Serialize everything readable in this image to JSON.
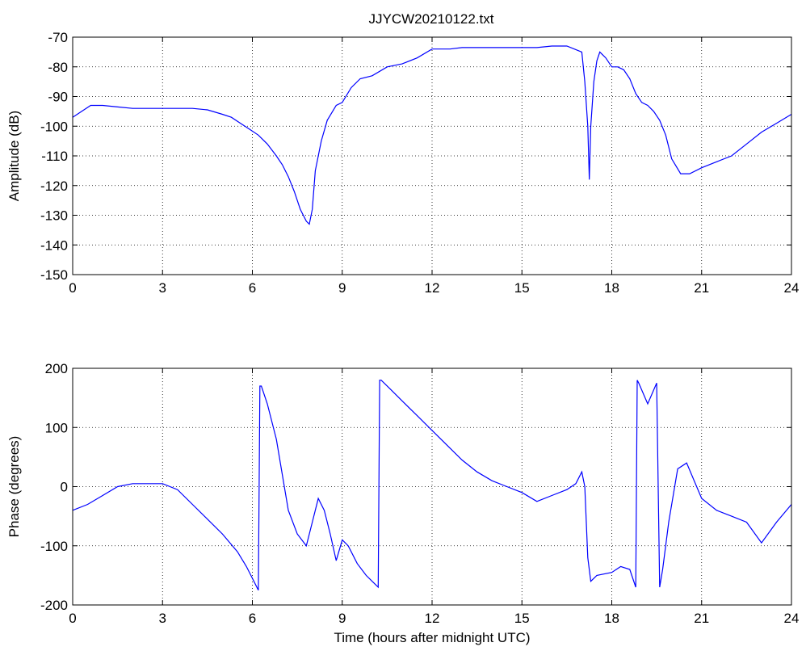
{
  "figure_title": "JJYCW20210122.txt",
  "chart_data": [
    {
      "type": "line",
      "title": "JJYCW20210122.txt",
      "xlabel": "",
      "ylabel": "Amplitude (dB)",
      "xlim": [
        0,
        24
      ],
      "ylim": [
        -150,
        -70
      ],
      "xticks": [
        0,
        3,
        6,
        9,
        12,
        15,
        18,
        21,
        24
      ],
      "yticks": [
        -150,
        -140,
        -130,
        -120,
        -110,
        -100,
        -90,
        -80,
        -70
      ],
      "grid": true,
      "line_color": "#0000ff",
      "series": [
        {
          "x": [
            0,
            0.3,
            0.6,
            1,
            1.5,
            2,
            2.5,
            3,
            3.5,
            4,
            4.5,
            5,
            5.3,
            5.6,
            5.9,
            6.2,
            6.5,
            6.8,
            7.0,
            7.2,
            7.4,
            7.6,
            7.8,
            7.9,
            8.0,
            8.1,
            8.3,
            8.5,
            8.8,
            9.0,
            9.3,
            9.6,
            10,
            10.5,
            11,
            11.5,
            12,
            12.3,
            12.6,
            13,
            13.5,
            14,
            14.5,
            15,
            15.5,
            16,
            16.5,
            17.0,
            17.1,
            17.2,
            17.25,
            17.3,
            17.4,
            17.5,
            17.6,
            17.8,
            18.0,
            18.2,
            18.4,
            18.6,
            18.8,
            19.0,
            19.2,
            19.4,
            19.6,
            19.8,
            20.0,
            20.3,
            20.6,
            21,
            21.5,
            22,
            22.5,
            23,
            23.5,
            24
          ],
          "y": [
            -97,
            -95,
            -93,
            -93,
            -93.5,
            -94,
            -94,
            -94,
            -94,
            -94,
            -94.5,
            -96,
            -97,
            -99,
            -101,
            -103,
            -106,
            -110,
            -113,
            -117,
            -122,
            -128,
            -132,
            -133,
            -128,
            -115,
            -105,
            -98,
            -93,
            -92,
            -87,
            -84,
            -83,
            -80,
            -79,
            -77,
            -74,
            -74,
            -74,
            -73.5,
            -73.5,
            -73.5,
            -73.5,
            -73.5,
            -73.5,
            -73,
            -73,
            -75,
            -85,
            -100,
            -118,
            -100,
            -85,
            -78,
            -75,
            -77,
            -80,
            -80,
            -81,
            -84,
            -89,
            -92,
            -93,
            -95,
            -98,
            -103,
            -111,
            -116,
            -116,
            -114,
            -112,
            -110,
            -106,
            -102,
            -99,
            -96
          ]
        }
      ]
    },
    {
      "type": "line",
      "title": "",
      "xlabel": "Time (hours after midnight UTC)",
      "ylabel": "Phase (degrees)",
      "xlim": [
        0,
        24
      ],
      "ylim": [
        -200,
        200
      ],
      "xticks": [
        0,
        3,
        6,
        9,
        12,
        15,
        18,
        21,
        24
      ],
      "yticks": [
        -200,
        -100,
        0,
        100,
        200
      ],
      "grid": true,
      "line_color": "#0000ff",
      "series": [
        {
          "x": [
            0,
            0.5,
            1,
            1.5,
            2,
            2.5,
            3,
            3.5,
            4,
            4.5,
            5,
            5.5,
            5.8,
            6.0,
            6.2,
            6.25,
            6.3,
            6.5,
            6.8,
            7.0,
            7.2,
            7.5,
            7.8,
            8.0,
            8.2,
            8.4,
            8.6,
            8.8,
            9.0,
            9.2,
            9.5,
            9.8,
            10.0,
            10.2,
            10.25,
            10.3,
            10.6,
            11.0,
            11.5,
            12.0,
            12.5,
            13,
            13.5,
            14,
            14.5,
            15,
            15.5,
            16,
            16.5,
            16.8,
            17.0,
            17.1,
            17.2,
            17.3,
            17.5,
            18.0,
            18.3,
            18.6,
            18.8,
            18.85,
            18.9,
            19.2,
            19.5,
            19.6,
            19.7,
            19.9,
            20.2,
            20.5,
            21,
            21.5,
            22,
            22.5,
            23,
            23.5,
            24
          ],
          "y": [
            -40,
            -30,
            -15,
            0,
            5,
            5,
            5,
            -5,
            -30,
            -55,
            -80,
            -110,
            -135,
            -155,
            -175,
            170,
            170,
            140,
            80,
            20,
            -40,
            -80,
            -100,
            -60,
            -20,
            -40,
            -80,
            -125,
            -90,
            -100,
            -130,
            -150,
            -160,
            -170,
            180,
            180,
            165,
            145,
            120,
            95,
            70,
            45,
            25,
            10,
            0,
            -10,
            -25,
            -15,
            -5,
            5,
            25,
            0,
            -120,
            -160,
            -150,
            -145,
            -135,
            -140,
            -170,
            180,
            175,
            140,
            175,
            -170,
            -140,
            -60,
            30,
            40,
            -20,
            -40,
            -50,
            -60,
            -95,
            -60,
            -30
          ]
        }
      ]
    }
  ]
}
